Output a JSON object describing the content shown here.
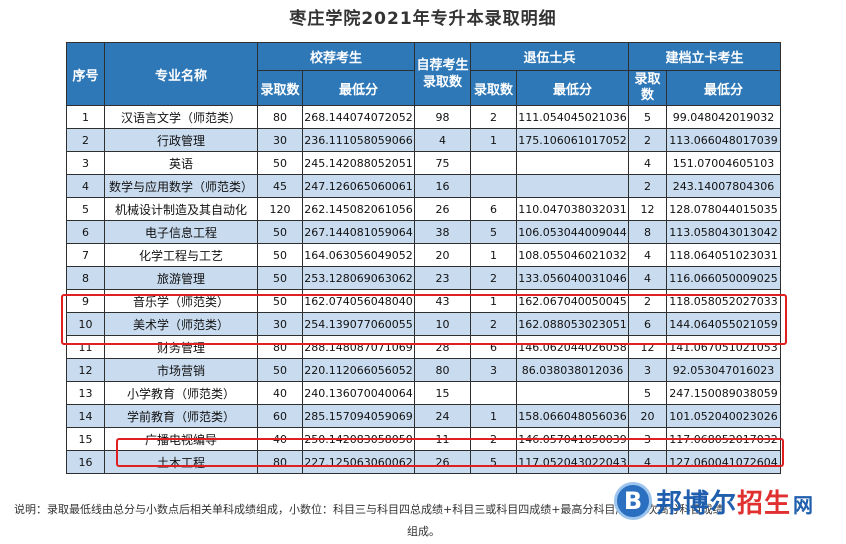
{
  "title": "枣庄学院2021年专升本录取明细",
  "headers": {
    "seq": "序号",
    "major": "专业名称",
    "recommend": "校荐考生",
    "self": "自荐考生录取数",
    "veteran": "退伍士兵",
    "card": "建档立卡考生",
    "count": "录取数",
    "min": "最低分"
  },
  "rows": [
    {
      "seq": "1",
      "name": "汉语言文学（师范类）",
      "rc": "80",
      "rm": "268.144074072052",
      "self": "98",
      "vc": "2",
      "vm": "111.054045021036",
      "cc": "5",
      "cm": "99.048042019032"
    },
    {
      "seq": "2",
      "name": "行政管理",
      "rc": "30",
      "rm": "236.111058059066",
      "self": "4",
      "vc": "1",
      "vm": "175.106061017052",
      "cc": "2",
      "cm": "113.066048017039"
    },
    {
      "seq": "3",
      "name": "英语",
      "rc": "50",
      "rm": "245.142088052051",
      "self": "75",
      "vc": "",
      "vm": "",
      "cc": "4",
      "cm": "151.07004605103"
    },
    {
      "seq": "4",
      "name": "数学与应用数学（师范类）",
      "rc": "45",
      "rm": "247.126065060061",
      "self": "16",
      "vc": "",
      "vm": "",
      "cc": "2",
      "cm": "243.14007804306"
    },
    {
      "seq": "5",
      "name": "机械设计制造及其自动化",
      "rc": "120",
      "rm": "262.145082061056",
      "self": "26",
      "vc": "6",
      "vm": "110.047038032031",
      "cc": "12",
      "cm": "128.078044015035"
    },
    {
      "seq": "6",
      "name": "电子信息工程",
      "rc": "50",
      "rm": "267.144081059064",
      "self": "38",
      "vc": "5",
      "vm": "106.053044009044",
      "cc": "8",
      "cm": "113.058043013042"
    },
    {
      "seq": "7",
      "name": "化学工程与工艺",
      "rc": "50",
      "rm": "164.063056049052",
      "self": "20",
      "vc": "1",
      "vm": "108.055046021032",
      "cc": "4",
      "cm": "118.064051023031"
    },
    {
      "seq": "8",
      "name": "旅游管理",
      "rc": "50",
      "rm": "253.128069063062",
      "self": "23",
      "vc": "2",
      "vm": "133.056040031046",
      "cc": "4",
      "cm": "116.066050009025"
    },
    {
      "seq": "9",
      "name": "音乐学（师范类）",
      "rc": "50",
      "rm": "162.074056048040",
      "self": "43",
      "vc": "1",
      "vm": "162.067040050045",
      "cc": "2",
      "cm": "118.058052027033"
    },
    {
      "seq": "10",
      "name": "美术学（师范类）",
      "rc": "30",
      "rm": "254.139077060055",
      "self": "10",
      "vc": "2",
      "vm": "162.088053023051",
      "cc": "6",
      "cm": "144.064055021059"
    },
    {
      "seq": "11",
      "name": "财务管理",
      "rc": "80",
      "rm": "288.148087071069",
      "self": "28",
      "vc": "6",
      "vm": "146.062044026058",
      "cc": "12",
      "cm": "141.067051021053"
    },
    {
      "seq": "12",
      "name": "市场营销",
      "rc": "50",
      "rm": "220.112066056052",
      "self": "80",
      "vc": "3",
      "vm": "86.038038012036",
      "cc": "3",
      "cm": "92.053047016023"
    },
    {
      "seq": "13",
      "name": "小学教育（师范类）",
      "rc": "40",
      "rm": "240.136070040064",
      "self": "15",
      "vc": "",
      "vm": "",
      "cc": "5",
      "cm": "247.150089038059"
    },
    {
      "seq": "14",
      "name": "学前教育（师范类）",
      "rc": "60",
      "rm": "285.157094059069",
      "self": "24",
      "vc": "1",
      "vm": "158.066048056036",
      "cc": "20",
      "cm": "101.052040023026"
    },
    {
      "seq": "15",
      "name": "广播电视编导",
      "rc": "40",
      "rm": "250.142083058050",
      "self": "11",
      "vc": "2",
      "vm": "146.057041050039",
      "cc": "3",
      "cm": "117.068052017032"
    },
    {
      "seq": "16",
      "name": "土木工程",
      "rc": "80",
      "rm": "227.125063060062",
      "self": "26",
      "vc": "5",
      "vm": "117.052043022043",
      "cc": "4",
      "cm": "127.060041072604"
    }
  ],
  "note_line1": "说明：录取最低线由总分与小数点后相关单科成绩组成，小数位：科目三与科目四总成绩+科目三或科目四成绩+最高分科目成绩+次高分科目成绩",
  "note_line2": "组成。",
  "watermark": {
    "mark": "B",
    "text_blue": "邦博尔",
    "text_red": "招生",
    "text_tail": "网"
  },
  "colors": {
    "header_bg": "#2e78b7",
    "row_alt": "#c9dbef",
    "highlight": "#e02020"
  }
}
